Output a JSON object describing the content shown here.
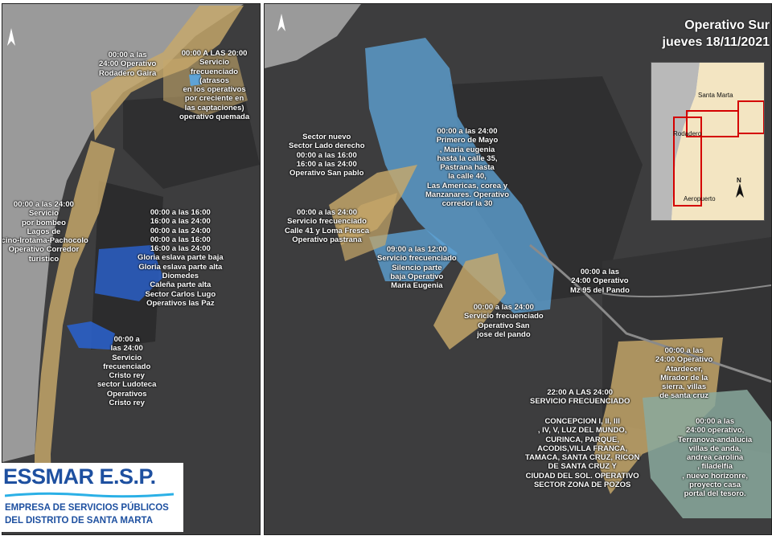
{
  "title": {
    "line1": "Operativo Sur",
    "line2": "jueves 18/11/2021"
  },
  "left_panel_labels": [
    "00:00 a las\n24:00 Operativo\nRodadero Gaira",
    "00:00 A LAS 20:00\nServicio\nfrecuenciado\n(atrasos\nen los operativos\npor creciente en\nlas captaciones)\noperativo quemada",
    "00:00 a las 24:00\nServicio\npor bombeo\nLagos de\nlcino-Irotama-Pachocolo\nOperativo Corredor\nturistico",
    "00:00 a las 16:00\n16:00 a las 24:00\n00:00 a las 24:00\n00:00 a las 16:00\n16:00 a las 24:00\nGloria eslava parte baja\nGloria eslava parte alta\nDiomedes\nCaleña parte alta\nSector Carlos Lugo\nOperativos las Paz",
    "00:00 a\nlas 24:00\nServicio\nfrecuenciado\nCristo rey\nsector Ludoteca\nOperativos\nCristo rey"
  ],
  "right_panel_labels": [
    "Sector nuevo\nSector Lado derecho\n00:00 a las 16:00\n16:00 a las 24:00\nOperativo San pablo",
    "00:00 a las 24:00\nPrimero de Mayo\n, Maria eugenia\nhasta la calle 35,\nPastrana hasta\nla calle 40,\nLas Americas, corea y\nManzanares. Operativo\ncorredor la 30",
    "00:00 a las 24:00\nServicio frecuenciado\nCalle 41 y Loma Fresca\nOperativo pastrana",
    "09:00 a las 12:00\nServicio frecuenciado\nSilencio parte\nbaja Operativo\nMaria Eugenia",
    "00:00 a las\n24:00 Operativo\nMz 95 del Pando",
    "00:00 a las 24:00\nServicio frecuenciado\nOperativo San\njose del pando",
    "00:00 a las\n24:00 Operativo\nAtardecer,\nMirador de la\nsierra, villas\nde santa cruz",
    "22:00 A LAS 24:00\nSERVICIO FRECUENCIADO",
    "CONCEPCION I, II, III\n, IV, V, LUZ DEL MUNDO,\nCURINCA, PARQUE,\nACODIS,VILLA FRANCA,\nTAMACA, SANTA CRUZ, RICON\nDE SANTA CRUZ Y\nCIUDAD DEL SOL. OPERATIVO\nSECTOR ZONA DE POZOS",
    "00:00 a las\n24:00 operativo,\nTerranova-andalucia\nvillas de anda,\nandrea carolina\n, filadelfia\n, nuevo horizonre,\nproyecto casa\nportal del tesoro."
  ],
  "inset": {
    "labels": [
      "Santa Marta",
      "Rodadero",
      "Aeropuerto"
    ],
    "north": "N"
  },
  "logo": {
    "brand": "ESSMAR E.S.P.",
    "line1": "EMPRESA DE SERVICIOS PÚBLICOS",
    "line2": "DEL DISTRITO DE SANTA MARTA"
  },
  "colors": {
    "tan": "#c7a86a",
    "blue_light": "#5ea3d6",
    "blue_dark": "#2a5fc7",
    "green": "#8aa99d",
    "land": "#3d3d3e",
    "sea": "#9a9a9a"
  }
}
